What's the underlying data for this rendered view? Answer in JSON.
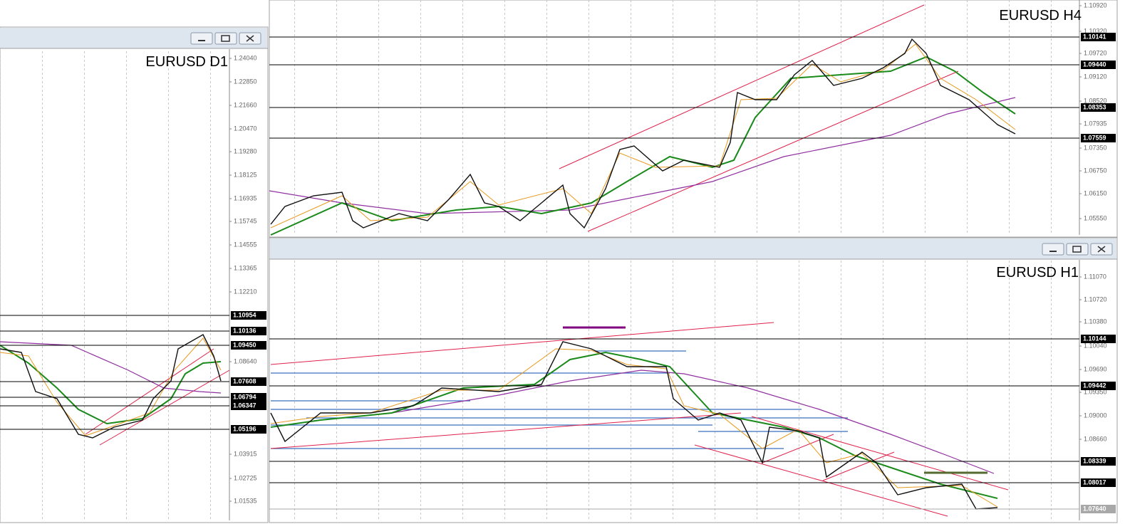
{
  "windows": {
    "h4": {
      "title": "EURUSD H4",
      "axis_labels": [
        "1.10920",
        "1.10320",
        "1.09720",
        "1.09120",
        "1.08520",
        "1.07935",
        "1.07350",
        "1.06750",
        "1.06150",
        "1.05550"
      ],
      "level_labels": [
        "1.10141",
        "1.09440",
        "1.08353",
        "1.07559"
      ]
    },
    "d1": {
      "title": "EURUSD D1",
      "axis_labels": [
        "1.24040",
        "1.22850",
        "1.21660",
        "1.20470",
        "1.19280",
        "1.18125",
        "1.16935",
        "1.15745",
        "1.14555",
        "1.13365",
        "1.12210",
        "1.08640",
        "1.03915",
        "1.02725",
        "1.01535"
      ],
      "level_labels": [
        "1.10954",
        "1.10136",
        "1.09450",
        "1.07608",
        "1.06794",
        "1.06347",
        "1.05196"
      ]
    },
    "h1": {
      "title": "EURUSD H1",
      "axis_labels": [
        "1.11070",
        "1.10720",
        "1.10380",
        "1.10040",
        "1.09690",
        "1.09350",
        "1.09000",
        "1.08660"
      ],
      "level_labels": [
        "1.10144",
        "1.09442",
        "1.08339",
        "1.08017",
        "1.07640"
      ]
    }
  }
}
